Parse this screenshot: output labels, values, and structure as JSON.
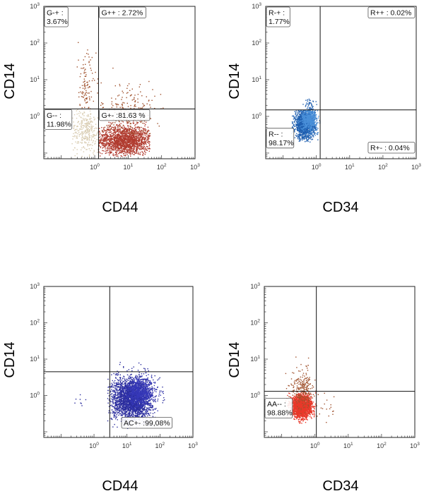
{
  "chart_data": [
    {
      "type": "scatter",
      "panel": "top-left",
      "xlabel": "CD44",
      "ylabel": "CD14",
      "scale": "log",
      "xlim": [
        0.03,
        1000
      ],
      "ylim": [
        0.07,
        1000
      ],
      "x_ticks": [
        {
          "label": "10",
          "exp": "0",
          "value": 1
        },
        {
          "label": "10",
          "exp": "1",
          "value": 10
        },
        {
          "label": "10",
          "exp": "2",
          "value": 100
        },
        {
          "label": "10",
          "exp": "3",
          "value": 1000
        }
      ],
      "y_ticks": [
        {
          "label": "10",
          "exp": "0",
          "value": 1
        },
        {
          "label": "10",
          "exp": "1",
          "value": 10
        },
        {
          "label": "10",
          "exp": "2",
          "value": 100
        },
        {
          "label": "10",
          "exp": "3",
          "value": 1000
        }
      ],
      "gate": {
        "x": 1.3,
        "y": 1.6
      },
      "quadrants": [
        {
          "name": "G-+",
          "label": "G-+ :",
          "value": "3.67%",
          "position": "top-left"
        },
        {
          "name": "G++",
          "label": "G++ : 2.72%",
          "value": "",
          "position": "top-right"
        },
        {
          "name": "G--",
          "label": "G-- :",
          "value": "11.98%",
          "position": "bottom-left"
        },
        {
          "name": "G+-",
          "label": "G+- :81.63 %",
          "value": "",
          "position": "bottom-right"
        }
      ],
      "populations": [
        {
          "color": "#b03a2e",
          "center": [
            8,
            0.22
          ],
          "spread": [
            0.42,
            0.2
          ],
          "count": 1800,
          "xr": [
            1.3,
            45
          ],
          "yr": [
            0.08,
            1.55
          ]
        },
        {
          "color": "#a0522d",
          "center": [
            10,
            1.2
          ],
          "spread": [
            0.4,
            0.45
          ],
          "count": 230,
          "xr": [
            1.3,
            120
          ],
          "yr": [
            0.3,
            150
          ]
        },
        {
          "color": "#d8cbb0",
          "center": [
            0.55,
            0.4
          ],
          "spread": [
            0.22,
            0.3
          ],
          "count": 320,
          "xr": [
            0.2,
            1.3
          ],
          "yr": [
            0.08,
            1.6
          ]
        },
        {
          "color": "#a0522d",
          "center": [
            0.55,
            5
          ],
          "spread": [
            0.15,
            0.55
          ],
          "count": 130,
          "xr": [
            0.3,
            1.25
          ],
          "yr": [
            1.6,
            400
          ]
        }
      ]
    },
    {
      "type": "scatter",
      "panel": "top-right",
      "xlabel": "CD34",
      "ylabel": "CD14",
      "scale": "log",
      "xlim": [
        0.03,
        1000
      ],
      "ylim": [
        0.07,
        1000
      ],
      "x_ticks": [
        {
          "label": "10",
          "exp": "0",
          "value": 1
        },
        {
          "label": "10",
          "exp": "1",
          "value": 10
        },
        {
          "label": "10",
          "exp": "2",
          "value": 100
        },
        {
          "label": "10",
          "exp": "3",
          "value": 1000
        }
      ],
      "y_ticks": [
        {
          "label": "10",
          "exp": "0",
          "value": 1
        },
        {
          "label": "10",
          "exp": "1",
          "value": 10
        },
        {
          "label": "10",
          "exp": "2",
          "value": 100
        },
        {
          "label": "10",
          "exp": "3",
          "value": 1000
        }
      ],
      "gate": {
        "x": 1.3,
        "y": 1.5
      },
      "quadrants": [
        {
          "name": "R-+",
          "label": "R-+ :",
          "value": "1.77%",
          "position": "top-left"
        },
        {
          "name": "R++",
          "label": "R++ : 0.02%",
          "value": "",
          "position": "top-right"
        },
        {
          "name": "R--",
          "label": "R-- :",
          "value": "98.17%",
          "position": "bottom-left"
        },
        {
          "name": "R+-",
          "label": "R+- : 0.04%",
          "value": "",
          "position": "bottom-right"
        }
      ],
      "populations": [
        {
          "color": "#1f5fb0",
          "center": [
            0.45,
            0.6
          ],
          "spread": [
            0.15,
            0.2
          ],
          "count": 1500,
          "xr": [
            0.18,
            1.3
          ],
          "yr": [
            0.2,
            1.5
          ]
        },
        {
          "color": "#4a90d9",
          "center": [
            0.6,
            0.85
          ],
          "spread": [
            0.12,
            0.15
          ],
          "count": 500,
          "xr": [
            0.2,
            1.3
          ],
          "yr": [
            0.3,
            1.5
          ]
        },
        {
          "color": "#1f5fb0",
          "center": [
            0.65,
            2.0
          ],
          "spread": [
            0.08,
            0.09
          ],
          "count": 45,
          "xr": [
            0.3,
            1.3
          ],
          "yr": [
            1.5,
            3.5
          ]
        }
      ]
    },
    {
      "type": "scatter",
      "panel": "bottom-left",
      "xlabel": "CD44",
      "ylabel": "CD14",
      "scale": "log",
      "xlim": [
        0.03,
        1000
      ],
      "ylim": [
        0.07,
        1000
      ],
      "x_ticks": [
        {
          "label": "10",
          "exp": "0",
          "value": 1
        },
        {
          "label": "10",
          "exp": "1",
          "value": 10
        },
        {
          "label": "10",
          "exp": "2",
          "value": 100
        },
        {
          "label": "10",
          "exp": "3",
          "value": 1000
        }
      ],
      "y_ticks": [
        {
          "label": "10",
          "exp": "0",
          "value": 1
        },
        {
          "label": "10",
          "exp": "1",
          "value": 10
        },
        {
          "label": "10",
          "exp": "2",
          "value": 100
        },
        {
          "label": "10",
          "exp": "3",
          "value": 1000
        }
      ],
      "gate": {
        "x": 3,
        "y": 4.5
      },
      "quadrants": [
        {
          "name": "AC+-",
          "label": "AC+- :99,08%",
          "value": "",
          "position": "bottom-right"
        }
      ],
      "populations": [
        {
          "color": "#2c2e9e",
          "center": [
            14,
            0.8
          ],
          "spread": [
            0.3,
            0.3
          ],
          "count": 2600,
          "xr": [
            2.6,
            200
          ],
          "yr": [
            0.12,
            10
          ]
        },
        {
          "color": "#3638b8",
          "center": [
            25,
            1.2
          ],
          "spread": [
            0.22,
            0.2
          ],
          "count": 700,
          "xr": [
            5,
            200
          ],
          "yr": [
            0.3,
            8
          ]
        },
        {
          "color": "#2c2e9e",
          "center": [
            0.4,
            0.6
          ],
          "spread": [
            0.1,
            0.15
          ],
          "count": 8,
          "xr": [
            0.2,
            0.8
          ],
          "yr": [
            0.3,
            1.2
          ]
        }
      ]
    },
    {
      "type": "scatter",
      "panel": "bottom-right",
      "xlabel": "CD34",
      "ylabel": "CD14",
      "scale": "log",
      "xlim": [
        0.03,
        1000
      ],
      "ylim": [
        0.07,
        1000
      ],
      "x_ticks": [
        {
          "label": "10",
          "exp": "0",
          "value": 1
        },
        {
          "label": "10",
          "exp": "1",
          "value": 10
        },
        {
          "label": "10",
          "exp": "2",
          "value": 100
        },
        {
          "label": "10",
          "exp": "3",
          "value": 1000
        }
      ],
      "y_ticks": [
        {
          "label": "10",
          "exp": "0",
          "value": 1
        },
        {
          "label": "10",
          "exp": "1",
          "value": 10
        },
        {
          "label": "10",
          "exp": "2",
          "value": 100
        },
        {
          "label": "10",
          "exp": "3",
          "value": 1000
        }
      ],
      "gate": {
        "x": 1.1,
        "y": 1.3
      },
      "quadrants": [
        {
          "name": "AA--",
          "label": "AA-- :",
          "value": "98.88%",
          "position": "bottom-left"
        }
      ],
      "populations": [
        {
          "color": "#e8392a",
          "center": [
            0.4,
            0.5
          ],
          "spread": [
            0.15,
            0.15
          ],
          "count": 2000,
          "xr": [
            0.06,
            1.1
          ],
          "yr": [
            0.08,
            1.3
          ]
        },
        {
          "color": "#a0522d",
          "center": [
            0.45,
            1.5
          ],
          "spread": [
            0.17,
            0.3
          ],
          "count": 260,
          "xr": [
            0.1,
            1.1
          ],
          "yr": [
            0.3,
            16
          ]
        },
        {
          "color": "#a0522d",
          "center": [
            1.8,
            0.5
          ],
          "spread": [
            0.25,
            0.2
          ],
          "count": 25,
          "xr": [
            1.1,
            4
          ],
          "yr": [
            0.1,
            1.3
          ]
        }
      ]
    }
  ]
}
